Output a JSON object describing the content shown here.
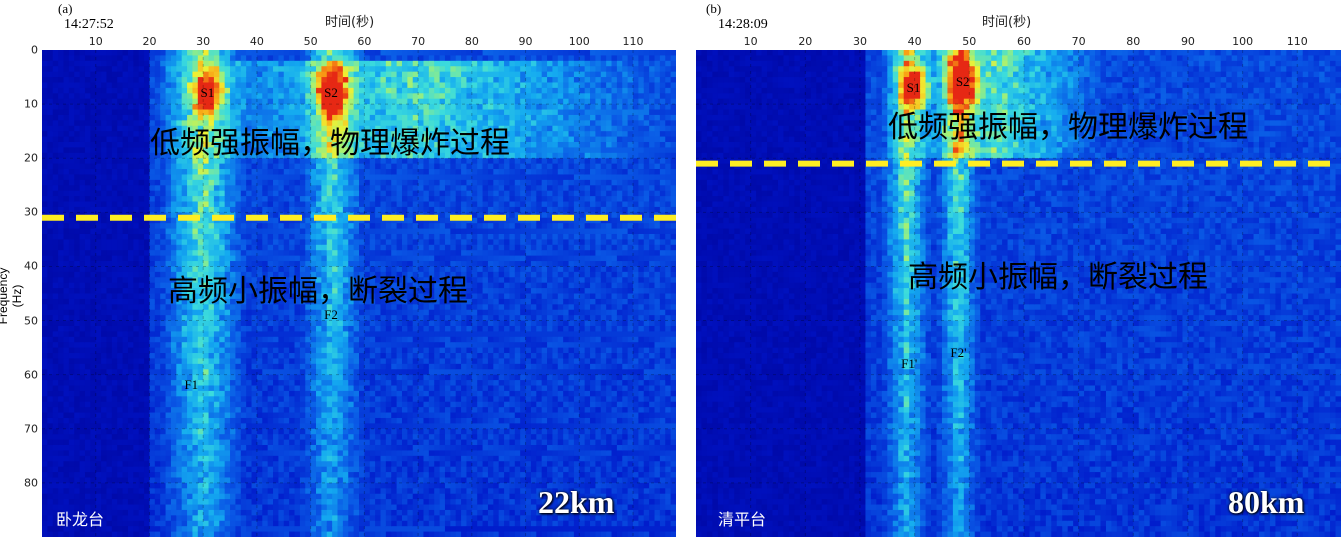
{
  "chart_data": [
    {
      "type": "heatmap",
      "panel_label": "(a)",
      "start_time": "14:27:52",
      "xlabel": "时间(秒)",
      "ylabel": "Frequency (Hz)",
      "x_ticks": [
        10,
        20,
        30,
        40,
        50,
        60,
        70,
        80,
        90,
        100,
        110
      ],
      "y_ticks": [
        0,
        10,
        20,
        30,
        40,
        50,
        60,
        70,
        80
      ],
      "xlim": [
        0,
        118
      ],
      "ylim": [
        0,
        90
      ],
      "y_reversed": true,
      "onset_time": 20,
      "threshold_frequency": 31,
      "threshold_line_color": "#ffee22",
      "annotations": {
        "low_freq": "低频强振幅，物理爆炸过程",
        "high_freq": "高频小振幅，断裂过程"
      },
      "peaks": [
        {
          "label": "S1",
          "time": 31,
          "freq": 8
        },
        {
          "label": "S2",
          "time": 54,
          "freq": 8
        },
        {
          "label": "F1",
          "time": 28,
          "freq": 62
        },
        {
          "label": "F2",
          "time": 54,
          "freq": 49
        }
      ],
      "energy_bands": [
        {
          "t0": 22,
          "t1": 38,
          "f0": 0,
          "f1": 90,
          "level": 0.55
        },
        {
          "t0": 48,
          "t1": 60,
          "f0": 0,
          "f1": 90,
          "level": 0.45
        },
        {
          "t0": 20,
          "t1": 118,
          "f0": 2,
          "f1": 20,
          "level": 0.4
        }
      ],
      "station": "卧龙台",
      "distance": "22km"
    },
    {
      "type": "heatmap",
      "panel_label": "(b)",
      "start_time": "14:28:09",
      "xlabel": "时间(秒)",
      "ylabel": "",
      "x_ticks": [
        10,
        20,
        30,
        40,
        50,
        60,
        70,
        80,
        90,
        100,
        110
      ],
      "y_ticks": [],
      "xlim": [
        0,
        118
      ],
      "ylim": [
        0,
        90
      ],
      "y_reversed": true,
      "onset_time": 31,
      "threshold_frequency": 21,
      "threshold_line_color": "#ffee22",
      "annotations": {
        "low_freq": "低频强振幅，物理爆炸过程",
        "high_freq": "高频小振幅，断裂过程"
      },
      "peaks": [
        {
          "label": "S1",
          "time": 40,
          "freq": 7
        },
        {
          "label": "S2",
          "time": 49,
          "freq": 6
        },
        {
          "label": "F1'",
          "time": 39,
          "freq": 58
        },
        {
          "label": "F2'",
          "time": 48,
          "freq": 56
        }
      ],
      "energy_bands": [
        {
          "t0": 34,
          "t1": 43,
          "f0": 0,
          "f1": 90,
          "level": 0.5
        },
        {
          "t0": 44,
          "t1": 52,
          "f0": 0,
          "f1": 90,
          "level": 0.5
        },
        {
          "t0": 34,
          "t1": 75,
          "f0": 0,
          "f1": 20,
          "level": 0.45
        }
      ],
      "station": "清平台",
      "distance": "80km"
    }
  ],
  "colors": {
    "background_field": "#0a3fd0",
    "pre_onset": "#0714a8",
    "threshold_line": "#ffee22",
    "hot": "#e8281a"
  }
}
